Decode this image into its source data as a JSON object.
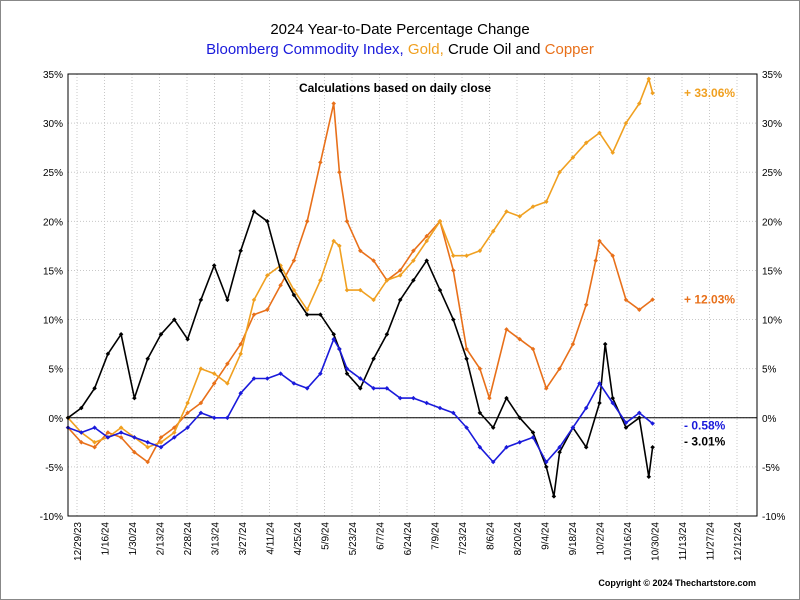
{
  "chart_data": {
    "type": "line",
    "title": "2024 Year-to-Date Percentage Change",
    "subtitle_parts": [
      {
        "text": "Bloomberg Commodity Index, ",
        "color": "#1a1adb"
      },
      {
        "text": "Gold, ",
        "color": "#f0a020"
      },
      {
        "text": "Crude Oil and ",
        "color": "#000000"
      },
      {
        "text": "Copper",
        "color": "#e8701a"
      }
    ],
    "annotation": "Calculations based on daily close",
    "copyright": "Copyright © 2024 Thechartstore.com",
    "ylim": [
      -10,
      35
    ],
    "yticks": [
      -10,
      -5,
      0,
      5,
      10,
      15,
      20,
      25,
      30,
      35
    ],
    "ytick_labels": [
      "-10%",
      "-5%",
      "0%",
      "5%",
      "10%",
      "15%",
      "20%",
      "25%",
      "30%",
      "35%"
    ],
    "xlim": [
      "2023-12-29",
      "2024-12-26"
    ],
    "xtick_labels": [
      "12/29/23",
      "1/16/24",
      "1/30/24",
      "2/13/24",
      "2/28/24",
      "3/13/24",
      "3/27/24",
      "4/11/24",
      "4/25/24",
      "5/9/24",
      "5/23/24",
      "6/7/24",
      "6/24/24",
      "7/9/24",
      "7/23/24",
      "8/6/24",
      "8/20/24",
      "9/4/24",
      "9/18/24",
      "10/2/24",
      "10/16/24",
      "10/30/24",
      "11/13/24",
      "11/27/24",
      "12/12/24"
    ],
    "grid": true,
    "series": [
      {
        "name": "Copper",
        "color": "#e8701a",
        "end_label": "+ 12.03%",
        "x": [
          "2023-12-29",
          "2024-01-05",
          "2024-01-12",
          "2024-01-19",
          "2024-01-26",
          "2024-02-02",
          "2024-02-09",
          "2024-02-16",
          "2024-02-23",
          "2024-03-01",
          "2024-03-08",
          "2024-03-15",
          "2024-03-22",
          "2024-03-29",
          "2024-04-05",
          "2024-04-12",
          "2024-04-19",
          "2024-04-26",
          "2024-05-03",
          "2024-05-10",
          "2024-05-17",
          "2024-05-20",
          "2024-05-24",
          "2024-05-31",
          "2024-06-07",
          "2024-06-14",
          "2024-06-21",
          "2024-06-28",
          "2024-07-05",
          "2024-07-12",
          "2024-07-19",
          "2024-07-26",
          "2024-08-02",
          "2024-08-07",
          "2024-08-16",
          "2024-08-23",
          "2024-08-30",
          "2024-09-06",
          "2024-09-13",
          "2024-09-20",
          "2024-09-27",
          "2024-10-02",
          "2024-10-04",
          "2024-10-11",
          "2024-10-18",
          "2024-10-25",
          "2024-11-01"
        ],
        "y": [
          -1.0,
          -2.5,
          -3.0,
          -1.5,
          -2.0,
          -3.5,
          -4.5,
          -2.0,
          -1.0,
          0.5,
          1.5,
          3.5,
          5.5,
          7.5,
          10.5,
          11.0,
          13.5,
          16.0,
          20.0,
          26.0,
          32.0,
          25.0,
          20.0,
          17.0,
          16.0,
          14.0,
          15.0,
          17.0,
          18.5,
          20.0,
          15.0,
          7.0,
          5.0,
          2.0,
          9.0,
          8.0,
          7.0,
          3.0,
          5.0,
          7.5,
          11.5,
          16.0,
          18.0,
          16.5,
          12.0,
          11.0,
          12.03
        ]
      },
      {
        "name": "Gold",
        "color": "#f0a020",
        "end_label": "+ 33.06%",
        "x": [
          "2023-12-29",
          "2024-01-05",
          "2024-01-12",
          "2024-01-19",
          "2024-01-26",
          "2024-02-02",
          "2024-02-09",
          "2024-02-16",
          "2024-02-23",
          "2024-03-01",
          "2024-03-08",
          "2024-03-15",
          "2024-03-22",
          "2024-03-29",
          "2024-04-05",
          "2024-04-12",
          "2024-04-19",
          "2024-04-26",
          "2024-05-03",
          "2024-05-10",
          "2024-05-17",
          "2024-05-20",
          "2024-05-24",
          "2024-05-31",
          "2024-06-07",
          "2024-06-14",
          "2024-06-21",
          "2024-06-28",
          "2024-07-05",
          "2024-07-12",
          "2024-07-19",
          "2024-07-26",
          "2024-08-02",
          "2024-08-09",
          "2024-08-16",
          "2024-08-23",
          "2024-08-30",
          "2024-09-06",
          "2024-09-13",
          "2024-09-20",
          "2024-09-27",
          "2024-10-04",
          "2024-10-11",
          "2024-10-18",
          "2024-10-25",
          "2024-10-30",
          "2024-11-01"
        ],
        "y": [
          0,
          -1.5,
          -2.5,
          -2.0,
          -1.0,
          -2.0,
          -3.0,
          -2.5,
          -1.5,
          1.5,
          5.0,
          4.5,
          3.5,
          6.5,
          12.0,
          14.5,
          15.5,
          13.0,
          11.0,
          14.0,
          18.0,
          17.5,
          13.0,
          13.0,
          12.0,
          14.0,
          14.5,
          16.0,
          18.0,
          20.0,
          16.5,
          16.5,
          17.0,
          19.0,
          21.0,
          20.5,
          21.5,
          22.0,
          25.0,
          26.5,
          28.0,
          29.0,
          27.0,
          30.0,
          32.0,
          34.5,
          33.06
        ]
      },
      {
        "name": "Crude Oil",
        "color": "#000000",
        "end_label": "- 3.01%",
        "x": [
          "2023-12-29",
          "2024-01-05",
          "2024-01-12",
          "2024-01-19",
          "2024-01-26",
          "2024-02-02",
          "2024-02-09",
          "2024-02-16",
          "2024-02-23",
          "2024-03-01",
          "2024-03-08",
          "2024-03-15",
          "2024-03-22",
          "2024-03-29",
          "2024-04-05",
          "2024-04-12",
          "2024-04-19",
          "2024-04-26",
          "2024-05-03",
          "2024-05-10",
          "2024-05-17",
          "2024-05-20",
          "2024-05-24",
          "2024-05-31",
          "2024-06-07",
          "2024-06-14",
          "2024-06-21",
          "2024-06-28",
          "2024-07-05",
          "2024-07-12",
          "2024-07-19",
          "2024-07-26",
          "2024-08-02",
          "2024-08-09",
          "2024-08-16",
          "2024-08-23",
          "2024-08-30",
          "2024-09-06",
          "2024-09-10",
          "2024-09-13",
          "2024-09-20",
          "2024-09-27",
          "2024-10-04",
          "2024-10-07",
          "2024-10-11",
          "2024-10-18",
          "2024-10-25",
          "2024-10-30",
          "2024-11-01"
        ],
        "y": [
          0,
          1.0,
          3.0,
          6.5,
          8.5,
          2.0,
          6.0,
          8.5,
          10.0,
          8.0,
          12.0,
          15.5,
          12.0,
          17.0,
          21.0,
          20.0,
          15.0,
          12.5,
          10.5,
          10.5,
          8.5,
          7.0,
          4.5,
          3.0,
          6.0,
          8.5,
          12.0,
          14.0,
          16.0,
          13.0,
          10.0,
          6.0,
          0.5,
          -1.0,
          2.0,
          0.0,
          -1.5,
          -5.0,
          -8.0,
          -3.5,
          -1.0,
          -3.0,
          1.5,
          7.5,
          2.0,
          -1.0,
          0.0,
          -6.0,
          -3.01
        ]
      },
      {
        "name": "Bloomberg Commodity Index",
        "color": "#1a1adb",
        "end_label": "- 0.58%",
        "x": [
          "2023-12-29",
          "2024-01-05",
          "2024-01-12",
          "2024-01-19",
          "2024-01-26",
          "2024-02-02",
          "2024-02-09",
          "2024-02-16",
          "2024-02-23",
          "2024-03-01",
          "2024-03-08",
          "2024-03-15",
          "2024-03-22",
          "2024-03-29",
          "2024-04-05",
          "2024-04-12",
          "2024-04-19",
          "2024-04-26",
          "2024-05-03",
          "2024-05-10",
          "2024-05-17",
          "2024-05-20",
          "2024-05-24",
          "2024-05-31",
          "2024-06-07",
          "2024-06-14",
          "2024-06-21",
          "2024-06-28",
          "2024-07-05",
          "2024-07-12",
          "2024-07-19",
          "2024-07-26",
          "2024-08-02",
          "2024-08-09",
          "2024-08-16",
          "2024-08-23",
          "2024-08-30",
          "2024-09-06",
          "2024-09-13",
          "2024-09-20",
          "2024-09-27",
          "2024-10-04",
          "2024-10-11",
          "2024-10-18",
          "2024-10-25",
          "2024-11-01"
        ],
        "y": [
          -1.0,
          -1.5,
          -1.0,
          -2.0,
          -1.5,
          -2.0,
          -2.5,
          -3.0,
          -2.0,
          -1.0,
          0.5,
          0.0,
          0.0,
          2.5,
          4.0,
          4.0,
          4.5,
          3.5,
          3.0,
          4.5,
          8.0,
          7.0,
          5.0,
          4.0,
          3.0,
          3.0,
          2.0,
          2.0,
          1.5,
          1.0,
          0.5,
          -1.0,
          -3.0,
          -4.5,
          -3.0,
          -2.5,
          -2.0,
          -4.5,
          -3.0,
          -1.0,
          1.0,
          3.5,
          1.5,
          -0.5,
          0.5,
          -0.58
        ]
      }
    ]
  }
}
